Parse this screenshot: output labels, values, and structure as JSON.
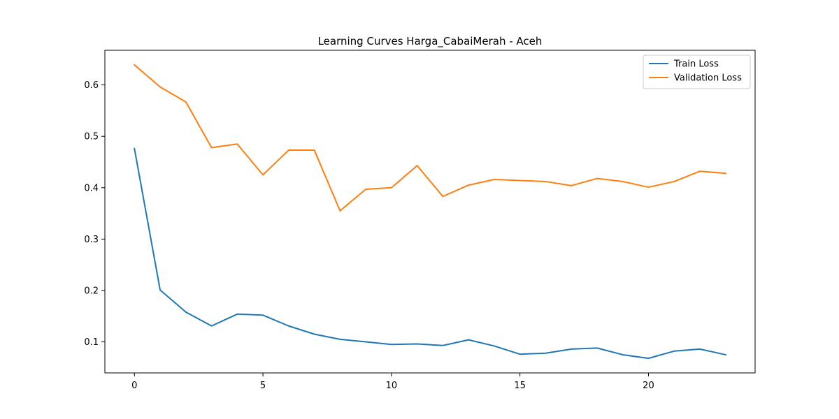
{
  "chart_data": {
    "type": "line",
    "title": "Learning Curves Harga_CabaiMerah - Aceh",
    "xlabel": "",
    "ylabel": "",
    "x": [
      0,
      1,
      2,
      3,
      4,
      5,
      6,
      7,
      8,
      9,
      10,
      11,
      12,
      13,
      14,
      15,
      16,
      17,
      18,
      19,
      20,
      21,
      22,
      23
    ],
    "xlim": [
      -1.15,
      24.15
    ],
    "ylim": [
      0.0396,
      0.6674
    ],
    "xticks": [
      0,
      5,
      10,
      15,
      20
    ],
    "xtick_labels": [
      "0",
      "5",
      "10",
      "15",
      "20"
    ],
    "yticks": [
      0.1,
      0.2,
      0.3,
      0.4,
      0.5,
      0.6
    ],
    "ytick_labels": [
      "0.1",
      "0.2",
      "0.3",
      "0.4",
      "0.5",
      "0.6"
    ],
    "grid": false,
    "legend_position": "top-right",
    "series": [
      {
        "name": "Train Loss",
        "color": "#1f77b4",
        "values": [
          0.476,
          0.201,
          0.158,
          0.131,
          0.154,
          0.152,
          0.131,
          0.115,
          0.105,
          0.1,
          0.095,
          0.096,
          0.093,
          0.104,
          0.092,
          0.076,
          0.078,
          0.086,
          0.088,
          0.075,
          0.068,
          0.082,
          0.086,
          0.075
        ]
      },
      {
        "name": "Validation Loss",
        "color": "#ff7f0e",
        "values": [
          0.639,
          0.596,
          0.567,
          0.478,
          0.485,
          0.425,
          0.473,
          0.473,
          0.355,
          0.397,
          0.4,
          0.443,
          0.383,
          0.405,
          0.416,
          0.414,
          0.412,
          0.404,
          0.418,
          0.412,
          0.401,
          0.412,
          0.432,
          0.428
        ]
      }
    ]
  }
}
